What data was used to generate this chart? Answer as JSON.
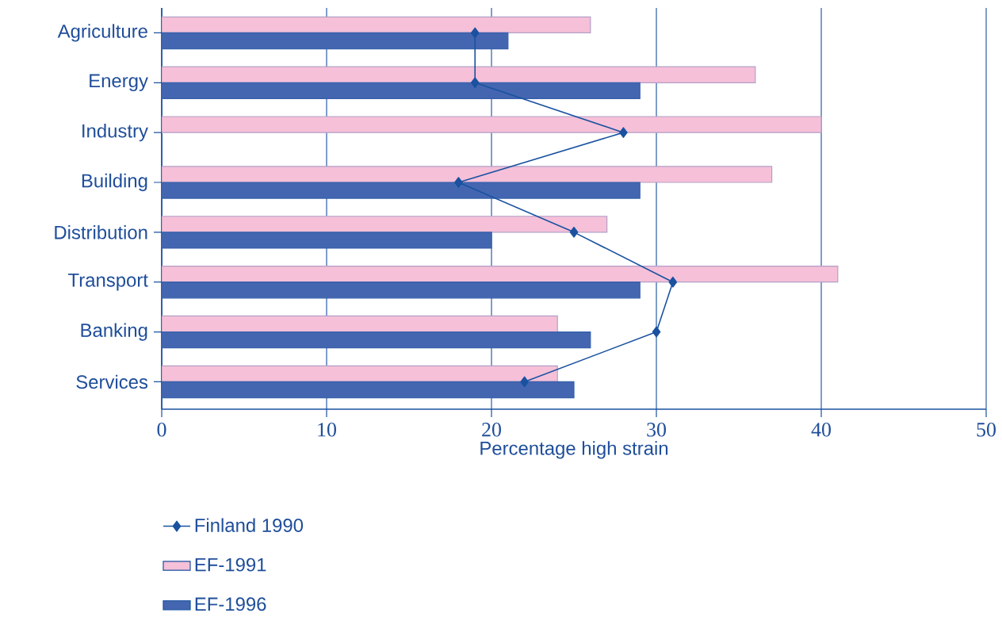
{
  "chart_data": {
    "type": "bar",
    "orientation": "horizontal",
    "xlabel": "Percentage high strain",
    "categories": [
      "Agriculture",
      "Energy",
      "Industry",
      "Building",
      "Distribution",
      "Transport",
      "Banking",
      "Services"
    ],
    "series": [
      {
        "name": "Finland 1990",
        "type": "line",
        "color": "#1a52a0",
        "marker": "diamond",
        "values": [
          19,
          19,
          28,
          18,
          25,
          31,
          30,
          22
        ]
      },
      {
        "name": "EF-1991",
        "color": "#f5c0d8",
        "values": [
          26,
          36,
          40,
          37,
          27,
          41,
          24,
          24
        ]
      },
      {
        "name": "EF-1996",
        "color": "#4466b0",
        "values": [
          21,
          29,
          null,
          29,
          20,
          29,
          26,
          25
        ]
      }
    ],
    "xlim": [
      0,
      50
    ],
    "xticks": [
      0,
      10,
      20,
      30,
      40,
      50
    ],
    "grid": "x",
    "legend": "bottom left"
  }
}
